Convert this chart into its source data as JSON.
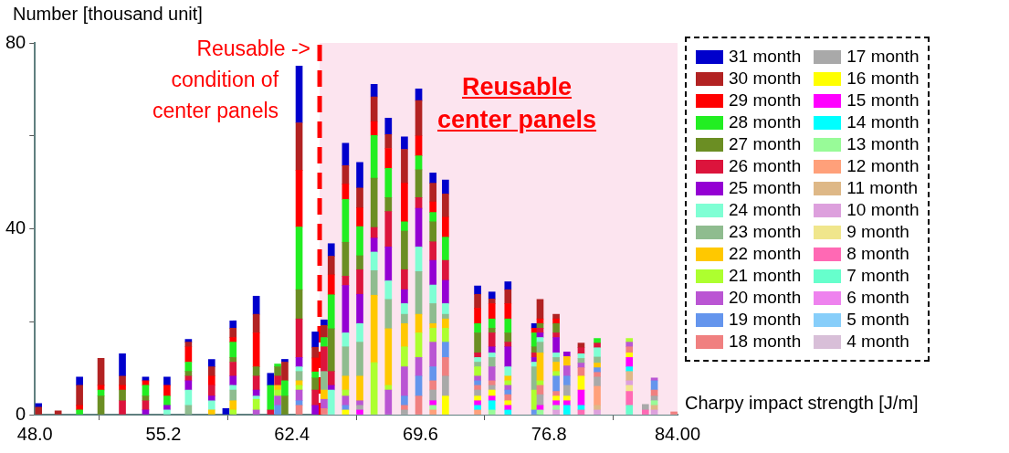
{
  "chart_data": {
    "type": "bar",
    "stacked": true,
    "xlabel": "Charpy impact strength [J/m]",
    "ylabel": "Number [thousand unit]",
    "x": [
      48.2,
      49.3,
      50.5,
      51.7,
      52.9,
      54.2,
      55.4,
      56.6,
      57.9,
      58.7,
      59.1,
      60.4,
      61.2,
      61.6,
      62.0,
      62.8,
      63.7,
      64.2,
      64.6,
      65.4,
      66.2,
      67.0,
      67.8,
      68.7,
      69.5,
      70.3,
      71.0,
      72.8,
      73.6,
      74.5,
      76.0,
      76.3,
      77.2,
      77.8,
      78.6,
      79.5,
      81.3,
      82.2,
      82.7,
      83.8
    ],
    "xlim": [
      48,
      84
    ],
    "xticks": [
      {
        "value": 48,
        "label": "48.0"
      },
      {
        "value": 55.2,
        "label": "55.2"
      },
      {
        "value": 62.4,
        "label": "62.4"
      },
      {
        "value": 69.6,
        "label": "69.6"
      },
      {
        "value": 76.8,
        "label": "76.8"
      },
      {
        "value": 84,
        "label": "84.00"
      }
    ],
    "ylim": [
      0,
      80
    ],
    "yticks": [
      0,
      {
        "value": 20,
        "label": null
      },
      40,
      {
        "value": 60,
        "label": null
      },
      80
    ],
    "grid": false,
    "legend": "right",
    "bands": [
      {
        "axis": "x",
        "from": 63.95,
        "to": 84,
        "label": "Reusable\ncenter panels",
        "color": "#fce4ef"
      }
    ],
    "ref_lines": [
      {
        "axis": "x",
        "value": 63.95,
        "label": "Reusable ->\ncondition of\ncenter panels",
        "color": "#ff0000",
        "line_style": "dashed"
      }
    ],
    "series": [
      {
        "name": "4 month",
        "color": "#d8bfd8",
        "values": [
          null,
          null,
          null,
          null,
          null,
          null,
          null,
          null,
          null,
          null,
          null,
          null,
          null,
          null,
          null,
          null,
          null,
          null,
          null,
          null,
          null,
          null,
          null,
          null,
          null,
          null,
          null,
          null,
          null,
          null,
          null,
          null,
          null,
          null,
          null,
          null,
          null,
          null,
          null,
          null
        ]
      },
      {
        "name": "5 month",
        "color": "#87cefa",
        "values": [
          null,
          null,
          null,
          null,
          null,
          null,
          null,
          null,
          null,
          null,
          null,
          null,
          null,
          null,
          null,
          null,
          null,
          null,
          null,
          null,
          null,
          null,
          null,
          null,
          null,
          null,
          null,
          null,
          null,
          null,
          null,
          null,
          null,
          null,
          null,
          null,
          null,
          null,
          null,
          null
        ]
      },
      {
        "name": "6 month",
        "color": "#ee82ee",
        "values": [
          null,
          null,
          null,
          null,
          null,
          null,
          null,
          null,
          null,
          null,
          null,
          null,
          null,
          null,
          null,
          null,
          null,
          null,
          null,
          null,
          null,
          null,
          null,
          null,
          null,
          null,
          null,
          null,
          null,
          null,
          null,
          null,
          null,
          null,
          null,
          null,
          null,
          null,
          null,
          null
        ]
      },
      {
        "name": "7 month",
        "color": "#66ffcc",
        "values": [
          null,
          null,
          null,
          null,
          null,
          null,
          null,
          null,
          null,
          null,
          null,
          null,
          null,
          null,
          null,
          null,
          null,
          null,
          null,
          null,
          null,
          null,
          null,
          null,
          null,
          null,
          null,
          null,
          null,
          null,
          null,
          null,
          null,
          null,
          null,
          null,
          2,
          null,
          null,
          null
        ]
      },
      {
        "name": "8 month",
        "color": "#ff69b4",
        "values": [
          null,
          null,
          null,
          null,
          null,
          null,
          null,
          null,
          null,
          null,
          null,
          null,
          null,
          null,
          null,
          null,
          null,
          null,
          null,
          null,
          null,
          null,
          null,
          null,
          null,
          null,
          null,
          null,
          null,
          null,
          null,
          null,
          null,
          null,
          1,
          null,
          3,
          1,
          null,
          null
        ]
      },
      {
        "name": "9 month",
        "color": "#f0e68c",
        "values": [
          null,
          null,
          null,
          null,
          null,
          null,
          null,
          null,
          null,
          null,
          null,
          null,
          null,
          null,
          null,
          null,
          null,
          null,
          null,
          null,
          null,
          null,
          null,
          null,
          null,
          null,
          null,
          null,
          null,
          null,
          null,
          null,
          null,
          null,
          null,
          null,
          1.3,
          null,
          null,
          null
        ]
      },
      {
        "name": "10 month",
        "color": "#dda0dd",
        "values": [
          null,
          null,
          null,
          null,
          null,
          null,
          null,
          null,
          null,
          null,
          null,
          null,
          null,
          null,
          null,
          null,
          null,
          null,
          null,
          null,
          null,
          null,
          null,
          null,
          null,
          null,
          null,
          null,
          null,
          null,
          null,
          null,
          1,
          null,
          null,
          1,
          1,
          null,
          1,
          null
        ]
      },
      {
        "name": "11 month",
        "color": "#deb887",
        "values": [
          null,
          null,
          null,
          null,
          null,
          null,
          null,
          null,
          null,
          null,
          null,
          null,
          null,
          null,
          null,
          null,
          null,
          null,
          null,
          null,
          null,
          null,
          null,
          null,
          null,
          null,
          null,
          null,
          null,
          null,
          null,
          null,
          null,
          null,
          null,
          1,
          2,
          null,
          1,
          null
        ]
      },
      {
        "name": "12 month",
        "color": "#ffa07a",
        "values": [
          null,
          null,
          null,
          null,
          null,
          null,
          null,
          null,
          null,
          null,
          null,
          null,
          null,
          null,
          null,
          null,
          null,
          null,
          null,
          null,
          null,
          null,
          null,
          null,
          null,
          1,
          null,
          1,
          null,
          null,
          null,
          null,
          null,
          null,
          null,
          4.1,
          null,
          null,
          null,
          null
        ]
      },
      {
        "name": "13 month",
        "color": "#98fb98",
        "values": [
          null,
          null,
          null,
          null,
          null,
          null,
          null,
          null,
          null,
          null,
          null,
          null,
          null,
          null,
          null,
          null,
          null,
          null,
          null,
          null,
          null,
          null,
          null,
          null,
          null,
          1,
          null,
          null,
          1,
          null,
          null,
          1,
          1,
          null,
          null,
          null,
          null,
          null,
          1,
          null
        ]
      },
      {
        "name": "14 month",
        "color": "#00ffff",
        "values": [
          null,
          null,
          null,
          null,
          null,
          null,
          null,
          null,
          null,
          null,
          null,
          null,
          null,
          null,
          null,
          null,
          null,
          null,
          null,
          null,
          null,
          null,
          null,
          null,
          null,
          null,
          null,
          1,
          2,
          1,
          null,
          null,
          null,
          2,
          1,
          null,
          1,
          null,
          null,
          null
        ]
      },
      {
        "name": "15 month",
        "color": "#ff00ff",
        "values": [
          null,
          null,
          null,
          null,
          null,
          null,
          null,
          null,
          null,
          null,
          null,
          null,
          null,
          null,
          null,
          null,
          null,
          null,
          null,
          null,
          1,
          null,
          null,
          null,
          null,
          1,
          null,
          1,
          1,
          1,
          null,
          1,
          1,
          1,
          3.3,
          null,
          2,
          null,
          null,
          null
        ]
      },
      {
        "name": "16 month",
        "color": "#ffff00",
        "values": [
          null,
          null,
          null,
          null,
          null,
          null,
          null,
          null,
          null,
          null,
          null,
          null,
          null,
          null,
          null,
          null,
          null,
          null,
          null,
          1,
          null,
          null,
          null,
          null,
          null,
          null,
          4,
          1,
          1.3,
          1,
          null,
          null,
          1,
          1,
          3,
          null,
          1,
          null,
          null,
          null
        ]
      },
      {
        "name": "17 month",
        "color": "#a9a9a9",
        "values": [
          null,
          null,
          null,
          null,
          null,
          null,
          null,
          null,
          null,
          null,
          null,
          null,
          null,
          null,
          null,
          null,
          null,
          null,
          null,
          null,
          1,
          null,
          null,
          1,
          null,
          2.3,
          4.3,
          1.3,
          1,
          null,
          null,
          2.3,
          null,
          2.3,
          null,
          2,
          null,
          1.2,
          1,
          null
        ]
      },
      {
        "name": "18 month",
        "color": "#f08080",
        "values": [
          null,
          null,
          null,
          null,
          null,
          null,
          null,
          null,
          null,
          null,
          null,
          null,
          null,
          null,
          null,
          2,
          null,
          1.3,
          null,
          null,
          null,
          null,
          null,
          1,
          4,
          2,
          4,
          1,
          1,
          1.3,
          null,
          2,
          1,
          null,
          1.8,
          1,
          1.3,
          null,
          1.3,
          0.6
        ]
      },
      {
        "name": "19 month",
        "color": "#6495ed",
        "values": [
          null,
          null,
          null,
          null,
          null,
          null,
          null,
          null,
          null,
          null,
          null,
          null,
          null,
          2,
          null,
          1,
          null,
          null,
          null,
          1,
          null,
          null,
          null,
          2,
          4.3,
          3,
          3.3,
          1,
          null,
          1,
          1,
          null,
          3.3,
          2,
          null,
          1,
          null,
          null,
          2,
          null
        ]
      },
      {
        "name": "20 month",
        "color": "#ba55d3",
        "values": [
          null,
          null,
          null,
          null,
          null,
          null,
          null,
          null,
          null,
          null,
          null,
          1,
          null,
          2,
          null,
          2.3,
          null,
          2,
          null,
          2,
          1,
          null,
          5.3,
          6.3,
          4,
          5.3,
          null,
          1,
          3,
          1,
          null,
          null,
          null,
          2.2,
          1,
          null,
          1,
          null,
          0.6,
          null
        ]
      },
      {
        "name": "21 month",
        "color": "#adff2f",
        "values": [
          null,
          null,
          null,
          null,
          null,
          null,
          null,
          null,
          null,
          null,
          1,
          2.3,
          null,
          1.3,
          null,
          1,
          null,
          null,
          null,
          1.3,
          null,
          11.2,
          1,
          4.3,
          5.3,
          3,
          3,
          2,
          null,
          1,
          4.3,
          1,
          1,
          null,
          null,
          null,
          0.8,
          null,
          null,
          null
        ]
      },
      {
        "name": "22 month",
        "color": "#ffc800",
        "values": [
          null,
          null,
          null,
          null,
          null,
          null,
          null,
          null,
          1,
          null,
          2,
          null,
          null,
          1,
          null,
          1,
          null,
          2,
          null,
          3,
          5.3,
          14.5,
          12.2,
          5,
          4,
          1,
          2,
          null,
          null,
          1,
          null,
          6,
          2,
          2,
          null,
          1,
          null,
          null,
          null,
          null
        ]
      },
      {
        "name": "23 month",
        "color": "#8fbc8f",
        "values": [
          null,
          null,
          null,
          null,
          null,
          null,
          null,
          2,
          null,
          null,
          2.3,
          null,
          null,
          null,
          null,
          2,
          null,
          4,
          null,
          6.3,
          7.3,
          5.3,
          6.3,
          2,
          9.2,
          4.3,
          1,
          1,
          2,
          null,
          5,
          2.3,
          1,
          null,
          1,
          1.3,
          null,
          null,
          null,
          null
        ]
      },
      {
        "name": "24 month",
        "color": "#7fffd4",
        "values": [
          null,
          null,
          null,
          null,
          null,
          null,
          1,
          3.3,
          2,
          null,
          1,
          0.7,
          null,
          null,
          null,
          1,
          null,
          null,
          5.3,
          3,
          4,
          4,
          4,
          2.3,
          5.3,
          4,
          2.3,
          1,
          1,
          2,
          1,
          1,
          1,
          null,
          1,
          2,
          null,
          null,
          null,
          null
        ]
      },
      {
        "name": "25 month",
        "color": "#9400d3",
        "values": [
          null,
          null,
          null,
          null,
          null,
          1,
          1,
          2,
          1,
          null,
          2,
          1.3,
          null,
          null,
          null,
          2,
          2,
          null,
          1,
          10.2,
          6.3,
          3,
          7.3,
          3,
          8.3,
          5.3,
          5,
          null,
          1.3,
          4.3,
          1,
          1,
          3.3,
          1,
          null,
          null,
          null,
          null,
          null,
          null
        ]
      },
      {
        "name": "26 month",
        "color": "#dc143c",
        "values": [
          null,
          null,
          null,
          null,
          3,
          2,
          null,
          1,
          2.3,
          null,
          3,
          3,
          1,
          2,
          null,
          8.3,
          3.3,
          5.3,
          3,
          2,
          5.3,
          2.3,
          7.6,
          4.3,
          2.3,
          4,
          4.3,
          1,
          3,
          1,
          1,
          1,
          1,
          null,
          1.3,
          1,
          null,
          null,
          null,
          null
        ]
      },
      {
        "name": "27 month",
        "color": "#6b8e23",
        "values": [
          null,
          null,
          null,
          4,
          2.3,
          1,
          null,
          1,
          null,
          null,
          1,
          2,
          null,
          2,
          4,
          6.3,
          2.6,
          null,
          9.2,
          7.3,
          3,
          10.6,
          3,
          8.3,
          6,
          4.3,
          null,
          4.3,
          1,
          2,
          1.3,
          1,
          2,
          null,
          null,
          null,
          null,
          null,
          null,
          null
        ]
      },
      {
        "name": "28 month",
        "color": "#22ee22",
        "values": [
          null,
          null,
          1,
          1.3,
          null,
          2.3,
          2,
          2,
          null,
          null,
          3.3,
          null,
          5.3,
          0.6,
          3.3,
          13.5,
          1.3,
          2,
          7.3,
          9.2,
          6.3,
          9.2,
          6.3,
          2,
          3,
          2,
          5,
          2,
          2,
          3,
          3,
          null,
          null,
          null,
          null,
          1,
          null,
          null,
          null,
          null
        ]
      },
      {
        "name": "29 month",
        "color": "#ff0000",
        "values": [
          null,
          null,
          1,
          1,
          1,
          1,
          2.3,
          3.3,
          2,
          null,
          1,
          7.3,
          null,
          null,
          null,
          12.2,
          3,
          null,
          4.3,
          3.3,
          4,
          3,
          4.3,
          8.3,
          4.3,
          2.3,
          4.3,
          3.3,
          3.3,
          3.3,
          1,
          1,
          1,
          null,
          null,
          null,
          null,
          null,
          null,
          null
        ]
      },
      {
        "name": "30 month",
        "color": "#b22222",
        "values": [
          1.6,
          0.8,
          4.3,
          5.8,
          2,
          null,
          null,
          1,
          2,
          null,
          2,
          4,
          null,
          null,
          4,
          10.2,
          2.3,
          2.6,
          4,
          4,
          4.3,
          5.3,
          3,
          7.3,
          7.6,
          4,
          5,
          3,
          1,
          3,
          null,
          4.2,
          1,
          null,
          1,
          null,
          null,
          null,
          null,
          null
        ]
      },
      {
        "name": "31 month",
        "color": "#0000cc",
        "values": [
          0.8,
          null,
          1.8,
          null,
          4.8,
          0.8,
          1.8,
          0.6,
          1.6,
          1.3,
          1.6,
          3.9,
          2.6,
          null,
          0.6,
          12.2,
          3.3,
          1.2,
          2.7,
          4.8,
          5.5,
          2.7,
          3.5,
          2.7,
          2.5,
          2.2,
          3,
          1.8,
          1.5,
          1.7,
          1,
          null,
          null,
          null,
          null,
          null,
          null,
          null,
          null,
          null
        ]
      }
    ]
  }
}
